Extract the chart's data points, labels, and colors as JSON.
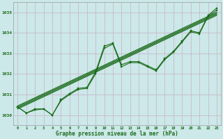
{
  "title": "Graphe pression niveau de la mer (hPa)",
  "bg_color": "#cce8e8",
  "grid_color": "#c8afc8",
  "line_color": "#1a6b1a",
  "marker_color": "#1a6b1a",
  "xlim": [
    -0.5,
    23.5
  ],
  "ylim": [
    1029.5,
    1035.5
  ],
  "yticks": [
    1030,
    1031,
    1032,
    1033,
    1034,
    1035
  ],
  "xticks": [
    0,
    1,
    2,
    3,
    4,
    5,
    6,
    7,
    8,
    9,
    10,
    11,
    12,
    13,
    14,
    15,
    16,
    17,
    18,
    19,
    20,
    21,
    22,
    23
  ],
  "jagged1": [
    1030.4,
    1030.1,
    1030.3,
    1030.3,
    1030.0,
    1030.75,
    1031.05,
    1031.3,
    1031.35,
    1032.1,
    1033.35,
    1033.5,
    1032.45,
    1032.6,
    1032.6,
    1032.4,
    1032.2,
    1032.75,
    1033.1,
    1033.6,
    1034.1,
    1034.0,
    1034.85,
    1035.2
  ],
  "jagged2": [
    1030.4,
    1030.1,
    1030.25,
    1030.3,
    1030.0,
    1030.7,
    1031.0,
    1031.25,
    1031.3,
    1032.0,
    1033.25,
    1033.45,
    1032.35,
    1032.55,
    1032.55,
    1032.35,
    1032.15,
    1032.7,
    1033.05,
    1033.55,
    1034.05,
    1033.95,
    1034.8,
    1035.1
  ],
  "trend_starts": [
    1030.3,
    1030.35,
    1030.4,
    1030.45
  ],
  "trend_ends": [
    1034.85,
    1034.9,
    1034.95,
    1035.0
  ]
}
